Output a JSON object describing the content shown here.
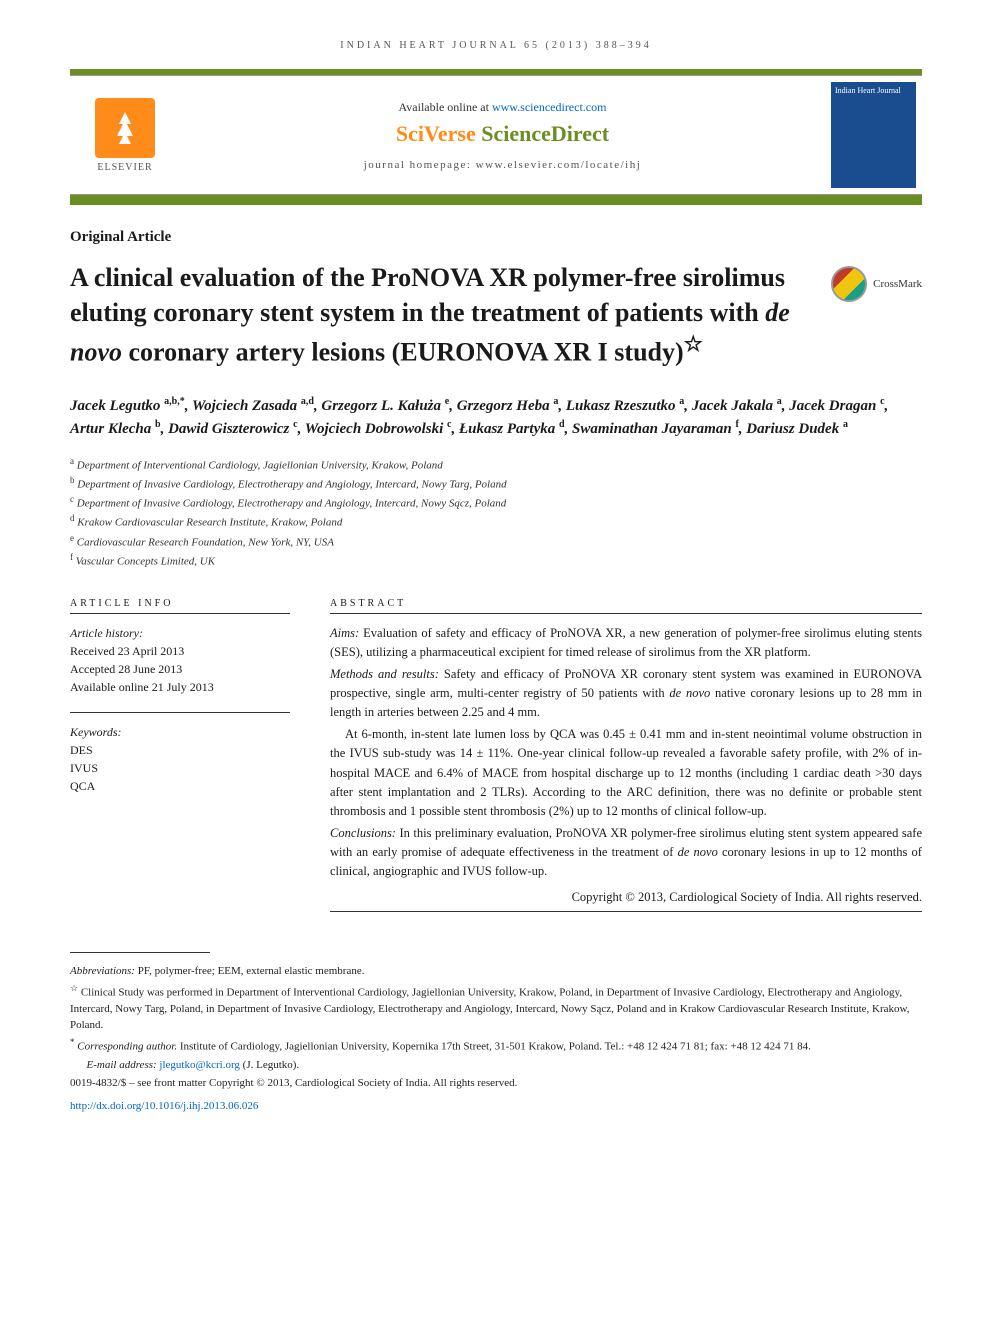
{
  "running_head": "INDIAN HEART JOURNAL 65 (2013) 388–394",
  "header": {
    "available_prefix": "Available online at ",
    "available_url": "www.sciencedirect.com",
    "brand_sci": "SciVerse ",
    "brand_sd": "ScienceDirect",
    "homepage_label": "journal homepage: www.elsevier.com/locate/ihj",
    "elsevier": "ELSEVIER",
    "cover_title": "Indian Heart Journal"
  },
  "crossmark": "CrossMark",
  "article_type": "Original Article",
  "title_pre": "A clinical evaluation of the ProNOVA XR polymer-free sirolimus eluting coronary stent system in the treatment of patients with ",
  "title_italic": "de novo",
  "title_post": " coronary artery lesions (EURONOVA XR I study)",
  "title_star": "☆",
  "authors_html": "Jacek Legutko <sup>a,b,*</sup>, Wojciech Zasada <sup>a,d</sup>, Grzegorz L. Kałuża <sup>e</sup>, Grzegorz Heba <sup>a</sup>, Lukasz Rzeszutko <sup>a</sup>, Jacek Jakala <sup>a</sup>, Jacek Dragan <sup>c</sup>, Artur Klecha <sup>b</sup>, Dawid Giszterowicz <sup>c</sup>, Wojciech Dobrowolski <sup>c</sup>, Łukasz Partyka <sup>d</sup>, Swaminathan Jayaraman <sup>f</sup>, Dariusz Dudek <sup>a</sup>",
  "affiliations": [
    {
      "sup": "a",
      "text": "Department of Interventional Cardiology, Jagiellonian University, Krakow, Poland"
    },
    {
      "sup": "b",
      "text": "Department of Invasive Cardiology, Electrotherapy and Angiology, Intercard, Nowy Targ, Poland"
    },
    {
      "sup": "c",
      "text": "Department of Invasive Cardiology, Electrotherapy and Angiology, Intercard, Nowy Sącz, Poland"
    },
    {
      "sup": "d",
      "text": "Krakow Cardiovascular Research Institute, Krakow, Poland"
    },
    {
      "sup": "e",
      "text": "Cardiovascular Research Foundation, New York, NY, USA"
    },
    {
      "sup": "f",
      "text": "Vascular Concepts Limited, UK"
    }
  ],
  "info": {
    "header": "ARTICLE INFO",
    "history_label": "Article history:",
    "history": [
      "Received 23 April 2013",
      "Accepted 28 June 2013",
      "Available online 21 July 2013"
    ],
    "keywords_label": "Keywords:",
    "keywords": [
      "DES",
      "IVUS",
      "QCA"
    ]
  },
  "abstract": {
    "header": "ABSTRACT",
    "aims_label": "Aims:",
    "aims": " Evaluation of safety and efficacy of ProNOVA XR, a new generation of polymer-free sirolimus eluting stents (SES), utilizing a pharmaceutical excipient for timed release of sirolimus from the XR platform.",
    "methods_label": "Methods and results:",
    "methods_1": " Safety and efficacy of ProNOVA XR coronary stent system was examined in EURONOVA prospective, single arm, multi-center registry of 50 patients with ",
    "methods_italic": "de novo",
    "methods_2": " native coronary lesions up to 28 mm in length in arteries between 2.25 and 4 mm.",
    "results": "At 6-month, in-stent late lumen loss by QCA was 0.45 ± 0.41 mm and in-stent neointimal volume obstruction in the IVUS sub-study was 14 ± 11%. One-year clinical follow-up revealed a favorable safety profile, with 2% of in-hospital MACE and 6.4% of MACE from hospital discharge up to 12 months (including 1 cardiac death >30 days after stent implantation and 2 TLRs). According to the ARC definition, there was no definite or probable stent thrombosis and 1 possible stent thrombosis (2%) up to 12 months of clinical follow-up.",
    "conclusions_label": "Conclusions:",
    "conclusions_1": " In this preliminary evaluation, ProNOVA XR polymer-free sirolimus eluting stent system appeared safe with an early promise of adequate effectiveness in the treatment of ",
    "conclusions_italic": "de novo",
    "conclusions_2": " coronary lesions in up to 12 months of clinical, angiographic and IVUS follow-up.",
    "copyright": "Copyright © 2013, Cardiological Society of India. All rights reserved."
  },
  "footnotes": {
    "abbrev_label": "Abbreviations:",
    "abbrev": " PF, polymer-free; EEM, external elastic membrane.",
    "study_sup": "☆",
    "study": " Clinical Study was performed in Department of Interventional Cardiology, Jagiellonian University, Krakow, Poland, in Department of Invasive Cardiology, Electrotherapy and Angiology, Intercard, Nowy Targ, Poland, in Department of Invasive Cardiology, Electrotherapy and Angiology, Intercard, Nowy Sącz, Poland and in Krakow Cardiovascular Research Institute, Krakow, Poland.",
    "corr_sup": "*",
    "corr_label": " Corresponding author.",
    "corr": " Institute of Cardiology, Jagiellonian University, Kopernika 17th Street, 31-501 Krakow, Poland. Tel.: +48 12 424 71 81; fax: +48 12 424 71 84.",
    "email_label": "E-mail address: ",
    "email": "jlegutko@kcri.org",
    "email_who": " (J. Legutko).",
    "issn": "0019-4832/$ – see front matter Copyright © 2013, Cardiological Society of India. All rights reserved.",
    "doi": "http://dx.doi.org/10.1016/j.ihj.2013.06.026"
  }
}
